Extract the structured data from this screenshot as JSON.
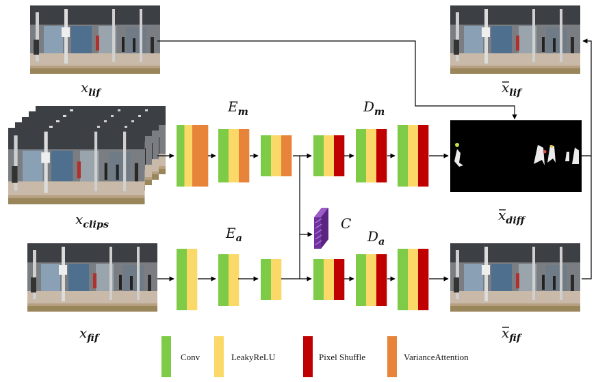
{
  "colors": {
    "conv": "#7dcb47",
    "leaky_relu": "#fbd968",
    "pixel_shuffle": "#c00000",
    "variance_attention": "#e8833a",
    "latent": "#7030a0",
    "arrow": "#000000"
  },
  "images": {
    "x_lif": {
      "base": "x",
      "sub": "lif",
      "bar": false
    },
    "x_clips": {
      "base": "x",
      "sub": "clips",
      "bar": false
    },
    "x_fif": {
      "base": "x",
      "sub": "fif",
      "bar": false
    },
    "xbar_lif": {
      "base": "x",
      "sub": "lif",
      "bar": true
    },
    "xbar_diff": {
      "base": "x",
      "sub": "diff",
      "bar": true
    },
    "xbar_fif": {
      "base": "x",
      "sub": "fif",
      "bar": true
    }
  },
  "modules": {
    "E_m": {
      "base": "E",
      "sub": "m"
    },
    "D_m": {
      "base": "D",
      "sub": "m"
    },
    "E_a": {
      "base": "E",
      "sub": "a"
    },
    "D_a": {
      "base": "D",
      "sub": "a"
    },
    "C": {
      "base": "C"
    }
  },
  "legend": {
    "conv": "Conv",
    "leaky_relu": "LeakyReLU",
    "pixel_shuffle": "Pixel Shuffle",
    "variance_attention": "VarianceAttention"
  }
}
